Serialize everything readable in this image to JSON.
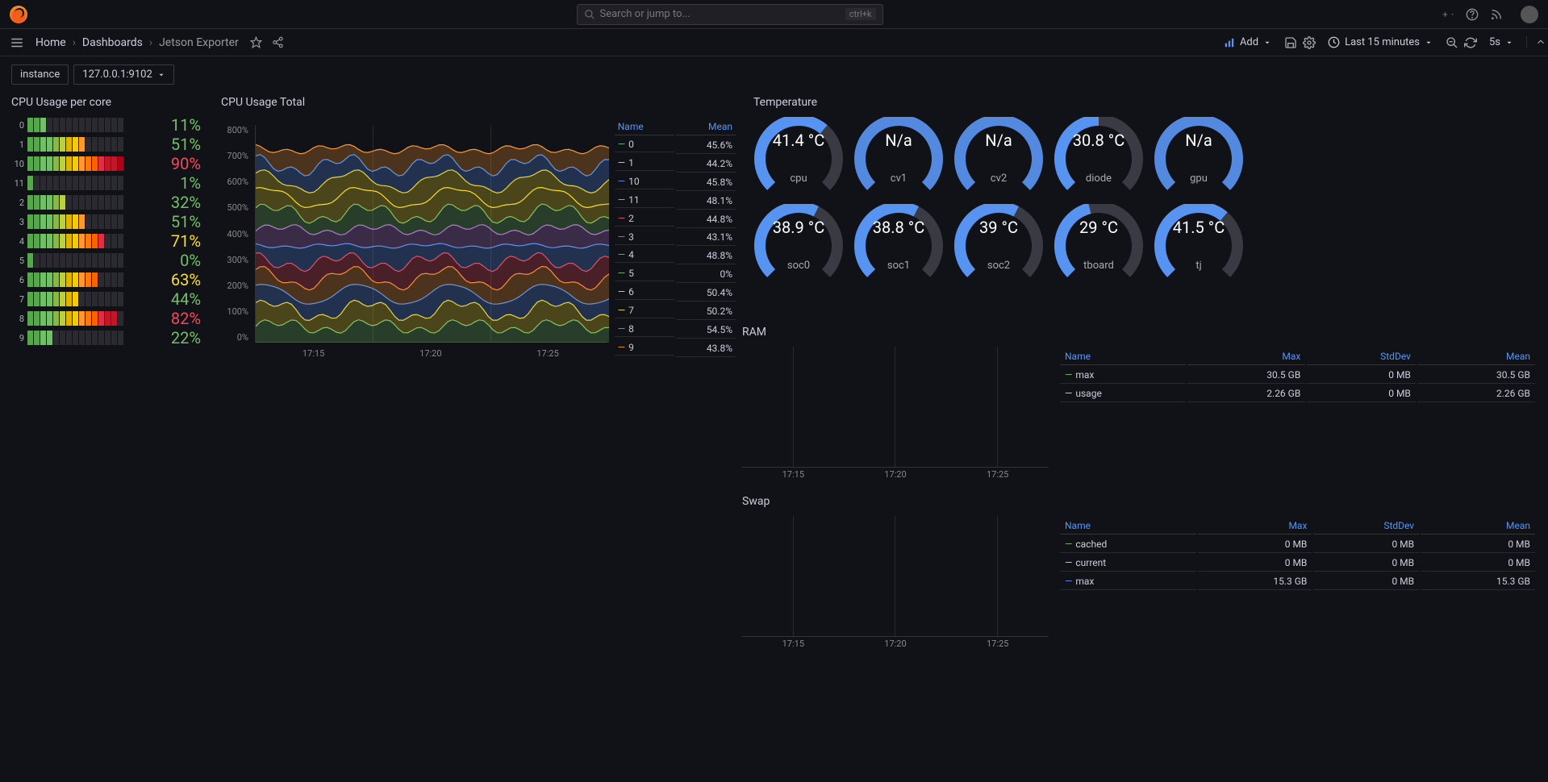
{
  "search": {
    "placeholder": "Search or jump to...",
    "kbd": "ctrl+k"
  },
  "breadcrumbs": {
    "home": "Home",
    "dashboards": "Dashboards",
    "current": "Jetson Exporter"
  },
  "toolbar": {
    "add": "Add",
    "timerange": "Last 15 minutes",
    "refresh_interval": "5s"
  },
  "variable": {
    "label": "instance",
    "value": "127.0.0.1:9102"
  },
  "panels": {
    "cpu_per_core": {
      "title": "CPU Usage per core",
      "cores": [
        {
          "id": "0",
          "pct": "11%",
          "color": "#73bf69",
          "fill": 3
        },
        {
          "id": "1",
          "pct": "51%",
          "color": "#73bf69",
          "fill": 9
        },
        {
          "id": "10",
          "pct": "90%",
          "color": "#f2495c",
          "fill": 15
        },
        {
          "id": "11",
          "pct": "1%",
          "color": "#73bf69",
          "fill": 1
        },
        {
          "id": "2",
          "pct": "32%",
          "color": "#73bf69",
          "fill": 6
        },
        {
          "id": "3",
          "pct": "51%",
          "color": "#73bf69",
          "fill": 9
        },
        {
          "id": "4",
          "pct": "71%",
          "color": "#fade2a",
          "fill": 12
        },
        {
          "id": "5",
          "pct": "0%",
          "color": "#73bf69",
          "fill": 1
        },
        {
          "id": "6",
          "pct": "63%",
          "color": "#fade2a",
          "fill": 11
        },
        {
          "id": "7",
          "pct": "44%",
          "color": "#73bf69",
          "fill": 8
        },
        {
          "id": "8",
          "pct": "82%",
          "color": "#f2495c",
          "fill": 14
        },
        {
          "id": "9",
          "pct": "22%",
          "color": "#73bf69",
          "fill": 4
        }
      ],
      "bar_colors": [
        "#56a64b",
        "#56a64b",
        "#73bf69",
        "#73bf69",
        "#8ab748",
        "#bccf3f",
        "#e0b400",
        "#f2cc0c",
        "#ff9830",
        "#ff780a",
        "#fa6400",
        "#e02f44",
        "#c4162a",
        "#c4162a",
        "#ad0317"
      ]
    },
    "cpu_total": {
      "title": "CPU Usage Total",
      "y_ticks": [
        "800%",
        "700%",
        "600%",
        "500%",
        "400%",
        "300%",
        "200%",
        "100%",
        "0%"
      ],
      "x_ticks": [
        "17:15",
        "17:20",
        "17:25"
      ],
      "legend_headers": [
        "Name",
        "Mean"
      ],
      "series": [
        {
          "name": "0",
          "mean": "45.6%",
          "color": "#73bf69"
        },
        {
          "name": "1",
          "mean": "44.2%",
          "color": "#fade2a"
        },
        {
          "name": "10",
          "mean": "45.8%",
          "color": "#5794f2"
        },
        {
          "name": "11",
          "mean": "48.1%",
          "color": "#ff9830"
        },
        {
          "name": "2",
          "mean": "44.8%",
          "color": "#f2495c"
        },
        {
          "name": "3",
          "mean": "43.1%",
          "color": "#5794f2"
        },
        {
          "name": "4",
          "mean": "48.8%",
          "color": "#b877d9"
        },
        {
          "name": "5",
          "mean": "0%",
          "color": "#73bf69"
        },
        {
          "name": "6",
          "mean": "50.4%",
          "color": "#fade2a"
        },
        {
          "name": "7",
          "mean": "50.2%",
          "color": "#fade2a"
        },
        {
          "name": "8",
          "mean": "54.5%",
          "color": "#5794f2"
        },
        {
          "name": "9",
          "mean": "43.8%",
          "color": "#ff9830"
        }
      ]
    },
    "temperature": {
      "title": "Temperature",
      "gauges": [
        {
          "val": "41.4 °C",
          "label": "cpu",
          "frac": 0.65,
          "color": "#5794f2"
        },
        {
          "val": "N/a",
          "label": "cv1",
          "frac": 0.0,
          "color": "#5794f2"
        },
        {
          "val": "N/a",
          "label": "cv2",
          "frac": 0.0,
          "color": "#5794f2"
        },
        {
          "val": "30.8 °C",
          "label": "diode",
          "frac": 0.5,
          "color": "#5794f2"
        },
        {
          "val": "N/a",
          "label": "gpu",
          "frac": 0.0,
          "color": "#5794f2"
        },
        {
          "val": "38.9 °C",
          "label": "soc0",
          "frac": 0.6,
          "color": "#5794f2"
        },
        {
          "val": "38.8 °C",
          "label": "soc1",
          "frac": 0.6,
          "color": "#5794f2"
        },
        {
          "val": "39 °C",
          "label": "soc2",
          "frac": 0.6,
          "color": "#5794f2"
        },
        {
          "val": "29 °C",
          "label": "tboard",
          "frac": 0.45,
          "color": "#5794f2"
        },
        {
          "val": "41.5 °C",
          "label": "tj",
          "frac": 0.65,
          "color": "#5794f2"
        }
      ],
      "bg_color": "#3a3a44"
    },
    "ram": {
      "title": "RAM",
      "x_ticks": [
        "17:15",
        "17:20",
        "17:25"
      ],
      "headers": [
        "Name",
        "Max",
        "StdDev",
        "Mean"
      ],
      "rows": [
        {
          "name": "max",
          "max": "30.5 GB",
          "std": "0 MB",
          "mean": "30.5 GB",
          "color": "#73bf69"
        },
        {
          "name": "usage",
          "max": "2.26 GB",
          "std": "0 MB",
          "mean": "2.26 GB",
          "color": "#fade2a"
        }
      ]
    },
    "swap": {
      "title": "Swap",
      "x_ticks": [
        "17:15",
        "17:20",
        "17:25"
      ],
      "headers": [
        "Name",
        "Max",
        "StdDev",
        "Mean"
      ],
      "rows": [
        {
          "name": "cached",
          "max": "0 MB",
          "std": "0 MB",
          "mean": "0 MB",
          "color": "#73bf69"
        },
        {
          "name": "current",
          "max": "0 MB",
          "std": "0 MB",
          "mean": "0 MB",
          "color": "#fade2a"
        },
        {
          "name": "max",
          "max": "15.3 GB",
          "std": "0 MB",
          "mean": "15.3 GB",
          "color": "#5794f2"
        }
      ]
    }
  }
}
